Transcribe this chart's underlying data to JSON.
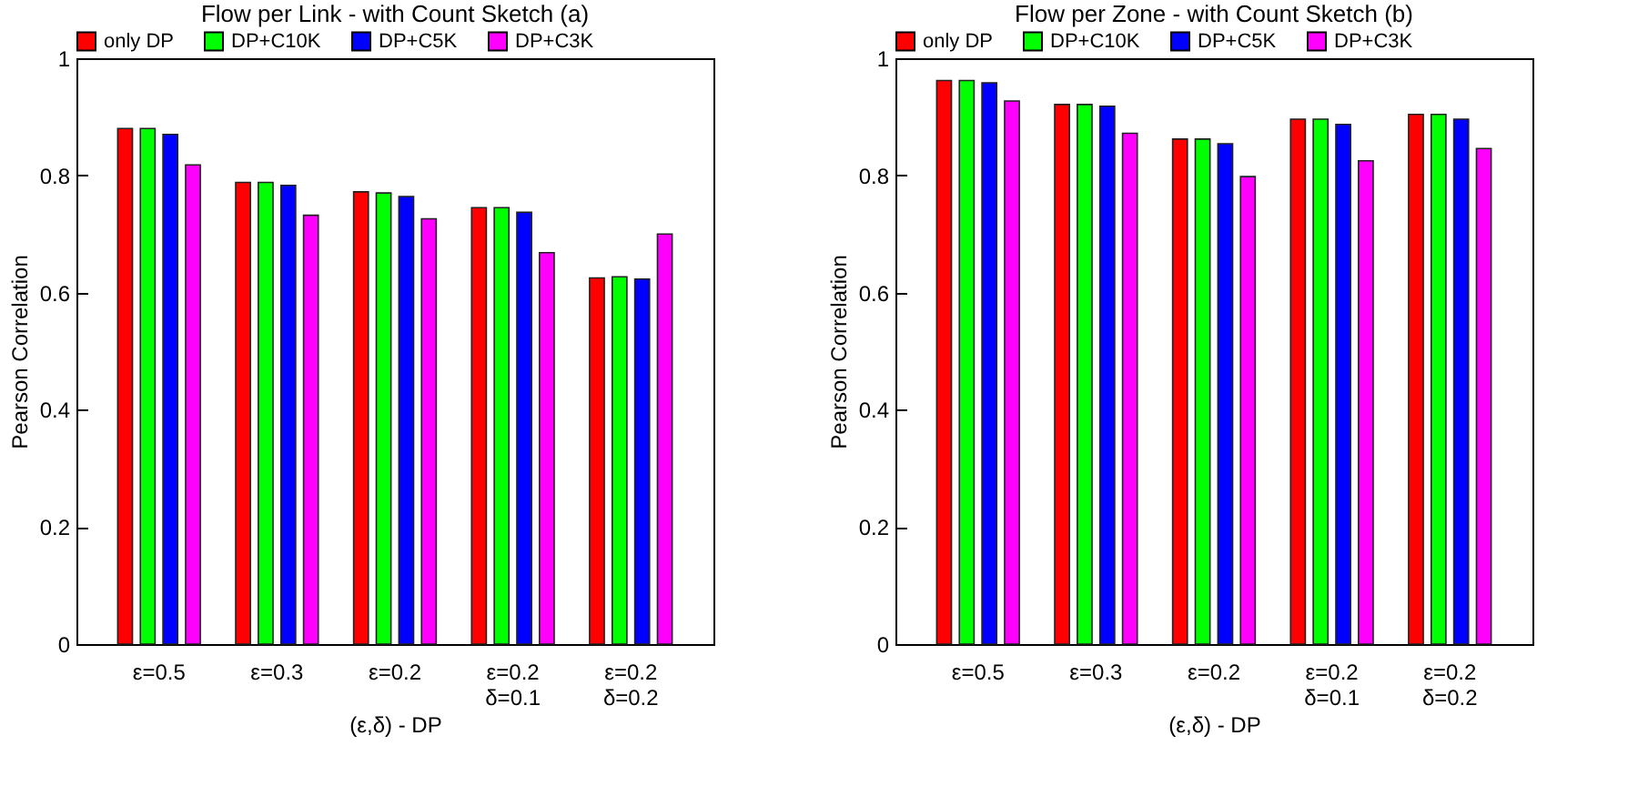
{
  "chart_data": [
    {
      "type": "bar",
      "title": "Flow per Link - with Count Sketch (a)",
      "xlabel": "(ε,δ) - DP",
      "ylabel": "Pearson Correlation",
      "categories": [
        "ε=0.5",
        "ε=0.3",
        "ε=0.2",
        "ε=0.2\nδ=0.1",
        "ε=0.2\nδ=0.2"
      ],
      "ylim": [
        0,
        1
      ],
      "yticks": [
        0,
        0.2,
        0.4,
        0.6,
        0.8,
        1
      ],
      "grid": false,
      "legend": "top",
      "series": [
        {
          "name": "only DP",
          "color": "#ff0000",
          "values": [
            0.88,
            0.788,
            0.772,
            0.745,
            0.625
          ]
        },
        {
          "name": "DP+C10K",
          "color": "#00ff00",
          "values": [
            0.88,
            0.788,
            0.77,
            0.745,
            0.627
          ]
        },
        {
          "name": "DP+C5K",
          "color": "#0000ff",
          "values": [
            0.87,
            0.783,
            0.764,
            0.737,
            0.623
          ]
        },
        {
          "name": "DP+C3K",
          "color": "#ff00ff",
          "values": [
            0.818,
            0.732,
            0.726,
            0.668,
            0.7
          ]
        }
      ]
    },
    {
      "type": "bar",
      "title": "Flow per Zone - with Count Sketch (b)",
      "xlabel": "(ε,δ) - DP",
      "ylabel": "Pearson Correlation",
      "categories": [
        "ε=0.5",
        "ε=0.3",
        "ε=0.2",
        "ε=0.2\nδ=0.1",
        "ε=0.2\nδ=0.2"
      ],
      "ylim": [
        0,
        1
      ],
      "yticks": [
        0,
        0.2,
        0.4,
        0.6,
        0.8,
        1
      ],
      "grid": false,
      "legend": "top",
      "series": [
        {
          "name": "only DP",
          "color": "#ff0000",
          "values": [
            0.962,
            0.921,
            0.862,
            0.896,
            0.904
          ]
        },
        {
          "name": "DP+C10K",
          "color": "#00ff00",
          "values": [
            0.962,
            0.921,
            0.862,
            0.896,
            0.904
          ]
        },
        {
          "name": "DP+C5K",
          "color": "#0000ff",
          "values": [
            0.958,
            0.918,
            0.854,
            0.887,
            0.896
          ]
        },
        {
          "name": "DP+C3K",
          "color": "#ff00ff",
          "values": [
            0.927,
            0.872,
            0.798,
            0.825,
            0.846
          ]
        }
      ]
    }
  ]
}
